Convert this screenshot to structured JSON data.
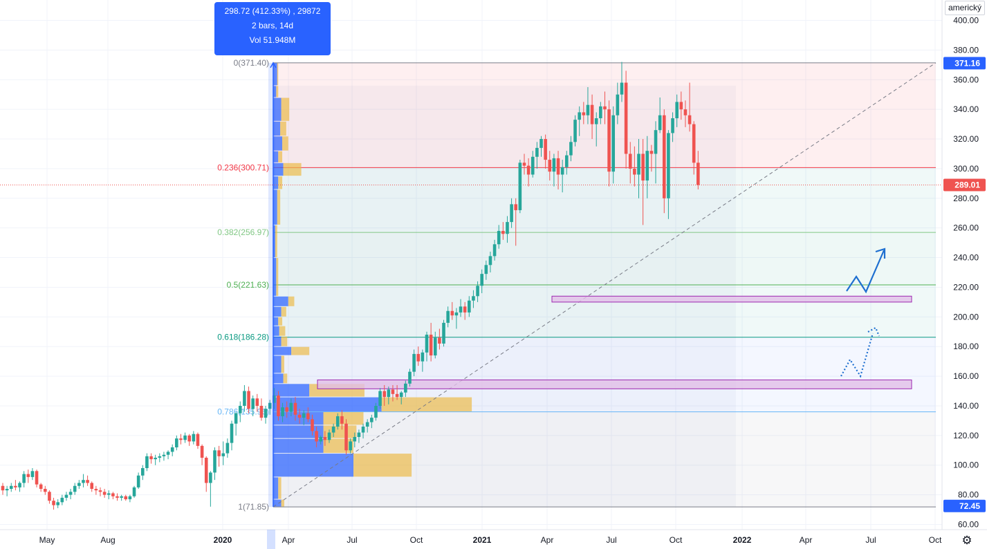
{
  "tooltip": {
    "line1": "298.72 (412.33%) , 29872",
    "line2": "2 bars, 14d",
    "line3": "Vol 51.948M"
  },
  "currency_label": "americký",
  "settings_icon": "gear-icon",
  "colors": {
    "up": "#26a69a",
    "down": "#ef5350",
    "accent": "#2962ff",
    "fib_0": "#787b86",
    "fib_0236": "#f23645",
    "fib_0382": "#81c784",
    "fib_05": "#4caf50",
    "fib_0618": "#089981",
    "fib_0786": "#64b5f6",
    "fib_1": "#787b86",
    "zone_fill": "#e1bee7",
    "zone_border": "#9c27b0",
    "arrow": "#1e6fd0"
  },
  "chart_data": {
    "type": "candlestick",
    "y_axis": {
      "min": 60,
      "max": 400,
      "ticks": [
        60,
        80,
        100,
        120,
        140,
        160,
        180,
        200,
        220,
        240,
        260,
        280,
        300,
        320,
        340,
        360,
        380,
        400
      ],
      "tick_labels": [
        "60.00",
        "80.00",
        "100.00",
        "120.00",
        "140.00",
        "160.00",
        "180.00",
        "200.00",
        "220.00",
        "240.00",
        "260.00",
        "280.00",
        "300.00",
        "320.00",
        "340.00",
        "360.00",
        "380.00",
        "400.00"
      ]
    },
    "x_axis": {
      "labels": [
        "May",
        "Aug",
        "2020",
        "Apr",
        "Jul",
        "Oct",
        "2021",
        "Apr",
        "Jul",
        "Oct",
        "2022",
        "Apr",
        "Jul",
        "Oct"
      ],
      "bold": [
        false,
        false,
        true,
        false,
        false,
        false,
        true,
        false,
        false,
        false,
        true,
        false,
        false,
        false
      ]
    },
    "price_labels": [
      {
        "value": 371.16,
        "text": "371.16",
        "style": "blue"
      },
      {
        "value": 289.01,
        "text": "289.01",
        "style": "red"
      },
      {
        "value": 72.45,
        "text": "72.45",
        "style": "blue"
      }
    ],
    "current_price": 289.01,
    "fibonacci": [
      {
        "level": "0",
        "price": 371.4,
        "label": "0(371.40)",
        "color_key": "fib_0"
      },
      {
        "level": "0.236",
        "price": 300.71,
        "label": "0.236(300.71)",
        "color_key": "fib_0236"
      },
      {
        "level": "0.382",
        "price": 256.97,
        "label": "0.382(256.97)",
        "color_key": "fib_0382"
      },
      {
        "level": "0.5",
        "price": 221.63,
        "label": "0.5(221.63)",
        "color_key": "fib_05"
      },
      {
        "level": "0.618",
        "price": 186.28,
        "label": "0.618(186.28)",
        "color_key": "fib_0618"
      },
      {
        "level": "0.786",
        "price": 135.96,
        "label": "0.786(135.96)",
        "color_key": "fib_0786"
      },
      {
        "level": "1",
        "price": 71.85,
        "label": "1(71.85)",
        "color_key": "fib_1"
      }
    ],
    "zones": [
      {
        "from": 210,
        "to": 214
      },
      {
        "from": 151.5,
        "to": 157.5
      }
    ],
    "trend_line": {
      "from_price": 71.85,
      "to_price": 371.4
    },
    "candles": [
      [
        86,
        88,
        80,
        83
      ],
      [
        83,
        86,
        79,
        84
      ],
      [
        84,
        88,
        82,
        86
      ],
      [
        86,
        90,
        83,
        85
      ],
      [
        85,
        89,
        82,
        88
      ],
      [
        88,
        96,
        85,
        94
      ],
      [
        94,
        97,
        88,
        92
      ],
      [
        92,
        98,
        90,
        96
      ],
      [
        96,
        97,
        85,
        87
      ],
      [
        87,
        88,
        82,
        84
      ],
      [
        84,
        86,
        80,
        82
      ],
      [
        82,
        83,
        74,
        76
      ],
      [
        76,
        78,
        70,
        73
      ],
      [
        73,
        77,
        71,
        75
      ],
      [
        75,
        80,
        73,
        78
      ],
      [
        78,
        82,
        76,
        80
      ],
      [
        80,
        84,
        77,
        82
      ],
      [
        82,
        88,
        80,
        86
      ],
      [
        86,
        90,
        84,
        88
      ],
      [
        88,
        94,
        85,
        90
      ],
      [
        90,
        93,
        86,
        88
      ],
      [
        88,
        89,
        82,
        84
      ],
      [
        84,
        86,
        80,
        83
      ],
      [
        83,
        85,
        79,
        82
      ],
      [
        82,
        84,
        78,
        80
      ],
      [
        80,
        83,
        77,
        81
      ],
      [
        81,
        82,
        77,
        79
      ],
      [
        79,
        81,
        76,
        78
      ],
      [
        78,
        80,
        76,
        79
      ],
      [
        79,
        80,
        76,
        77
      ],
      [
        77,
        80,
        75,
        79
      ],
      [
        79,
        86,
        78,
        85
      ],
      [
        85,
        95,
        84,
        93
      ],
      [
        93,
        100,
        90,
        98
      ],
      [
        98,
        108,
        96,
        106
      ],
      [
        106,
        108,
        101,
        104
      ],
      [
        104,
        107,
        100,
        105
      ],
      [
        105,
        108,
        102,
        106
      ],
      [
        106,
        109,
        103,
        107
      ],
      [
        107,
        110,
        104,
        109
      ],
      [
        109,
        114,
        106,
        112
      ],
      [
        112,
        120,
        110,
        118
      ],
      [
        118,
        121,
        114,
        117
      ],
      [
        117,
        122,
        115,
        120
      ],
      [
        120,
        121,
        113,
        116
      ],
      [
        116,
        123,
        114,
        121
      ],
      [
        121,
        122,
        111,
        113
      ],
      [
        113,
        114,
        100,
        105
      ],
      [
        105,
        106,
        82,
        88
      ],
      [
        88,
        96,
        72,
        95
      ],
      [
        95,
        112,
        90,
        110
      ],
      [
        110,
        113,
        99,
        106
      ],
      [
        106,
        116,
        100,
        108
      ],
      [
        108,
        118,
        105,
        115
      ],
      [
        115,
        130,
        110,
        128
      ],
      [
        128,
        136,
        120,
        135
      ],
      [
        135,
        143,
        129,
        140
      ],
      [
        140,
        154,
        136,
        150
      ],
      [
        150,
        153,
        135,
        138
      ],
      [
        138,
        147,
        133,
        145
      ],
      [
        145,
        148,
        136,
        140
      ],
      [
        140,
        145,
        130,
        132
      ],
      [
        132,
        140,
        128,
        138
      ],
      [
        138,
        144,
        134,
        142
      ],
      [
        142,
        152,
        138,
        147
      ],
      [
        147,
        150,
        130,
        133
      ],
      [
        133,
        142,
        129,
        139
      ],
      [
        139,
        143,
        132,
        136
      ],
      [
        136,
        145,
        133,
        142
      ],
      [
        142,
        146,
        130,
        134
      ],
      [
        134,
        138,
        128,
        132
      ],
      [
        132,
        137,
        127,
        135
      ],
      [
        135,
        139,
        129,
        131
      ],
      [
        131,
        134,
        120,
        123
      ],
      [
        123,
        126,
        112,
        116
      ],
      [
        116,
        120,
        114,
        119
      ],
      [
        119,
        123,
        113,
        117
      ],
      [
        117,
        124,
        115,
        122
      ],
      [
        122,
        128,
        119,
        126
      ],
      [
        126,
        135,
        124,
        133
      ],
      [
        133,
        137,
        124,
        128
      ],
      [
        128,
        131,
        107,
        110
      ],
      [
        110,
        118,
        108,
        116
      ],
      [
        116,
        122,
        112,
        119
      ],
      [
        119,
        124,
        115,
        122
      ],
      [
        122,
        128,
        118,
        126
      ],
      [
        126,
        131,
        122,
        129
      ],
      [
        129,
        134,
        125,
        132
      ],
      [
        132,
        142,
        130,
        140
      ],
      [
        140,
        152,
        138,
        150
      ],
      [
        150,
        154,
        140,
        146
      ],
      [
        146,
        153,
        141,
        151
      ],
      [
        151,
        154,
        143,
        148
      ],
      [
        148,
        154,
        144,
        146
      ],
      [
        146,
        150,
        141,
        149
      ],
      [
        149,
        157,
        146,
        155
      ],
      [
        155,
        165,
        153,
        163
      ],
      [
        163,
        178,
        160,
        175
      ],
      [
        175,
        180,
        167,
        170
      ],
      [
        170,
        178,
        163,
        176
      ],
      [
        176,
        190,
        170,
        188
      ],
      [
        188,
        196,
        170,
        174
      ],
      [
        174,
        190,
        172,
        186
      ],
      [
        186,
        192,
        178,
        182
      ],
      [
        182,
        198,
        180,
        196
      ],
      [
        196,
        207,
        193,
        204
      ],
      [
        204,
        210,
        198,
        201
      ],
      [
        201,
        206,
        192,
        203
      ],
      [
        203,
        212,
        200,
        207
      ],
      [
        207,
        210,
        198,
        203
      ],
      [
        203,
        214,
        200,
        211
      ],
      [
        211,
        218,
        206,
        214
      ],
      [
        214,
        224,
        210,
        221
      ],
      [
        221,
        232,
        216,
        229
      ],
      [
        229,
        238,
        225,
        235
      ],
      [
        235,
        244,
        230,
        241
      ],
      [
        241,
        252,
        238,
        249
      ],
      [
        249,
        262,
        246,
        258
      ],
      [
        258,
        264,
        252,
        256
      ],
      [
        256,
        268,
        250,
        264
      ],
      [
        264,
        280,
        260,
        276
      ],
      [
        276,
        280,
        248,
        272
      ],
      [
        272,
        306,
        270,
        304
      ],
      [
        304,
        310,
        296,
        302
      ],
      [
        302,
        307,
        288,
        296
      ],
      [
        296,
        312,
        294,
        308
      ],
      [
        308,
        318,
        300,
        314
      ],
      [
        314,
        322,
        308,
        320
      ],
      [
        320,
        323,
        300,
        306
      ],
      [
        306,
        312,
        292,
        298
      ],
      [
        298,
        310,
        288,
        307
      ],
      [
        307,
        312,
        286,
        296
      ],
      [
        296,
        306,
        284,
        301
      ],
      [
        301,
        312,
        296,
        309
      ],
      [
        309,
        322,
        305,
        318
      ],
      [
        318,
        336,
        315,
        333
      ],
      [
        333,
        342,
        322,
        338
      ],
      [
        338,
        345,
        330,
        336
      ],
      [
        336,
        355,
        330,
        343
      ],
      [
        343,
        350,
        320,
        330
      ],
      [
        330,
        338,
        315,
        334
      ],
      [
        334,
        345,
        330,
        342
      ],
      [
        342,
        352,
        330,
        340
      ],
      [
        340,
        346,
        288,
        298
      ],
      [
        298,
        342,
        290,
        336
      ],
      [
        336,
        358,
        330,
        350
      ],
      [
        350,
        372,
        345,
        358
      ],
      [
        358,
        366,
        300,
        310
      ],
      [
        310,
        318,
        290,
        300
      ],
      [
        300,
        315,
        288,
        296
      ],
      [
        296,
        320,
        280,
        310
      ],
      [
        310,
        320,
        262,
        292
      ],
      [
        292,
        322,
        280,
        312
      ],
      [
        312,
        316,
        298,
        310
      ],
      [
        310,
        332,
        290,
        326
      ],
      [
        326,
        348,
        324,
        336
      ],
      [
        336,
        340,
        270,
        280
      ],
      [
        280,
        326,
        266,
        324
      ],
      [
        324,
        338,
        318,
        334
      ],
      [
        334,
        350,
        328,
        345
      ],
      [
        345,
        352,
        333,
        340
      ],
      [
        340,
        346,
        328,
        336
      ],
      [
        336,
        358,
        325,
        330
      ],
      [
        330,
        332,
        296,
        304
      ],
      [
        304,
        312,
        286,
        289
      ]
    ],
    "volume_profile": [
      {
        "price_low": 71.85,
        "price_high": 77,
        "up": 8,
        "down": 3
      },
      {
        "price_low": 77,
        "price_high": 92,
        "up": 5,
        "down": 3
      },
      {
        "price_low": 92,
        "price_high": 108,
        "up": 80,
        "down": 58
      },
      {
        "price_low": 108,
        "price_high": 118,
        "up": 50,
        "down": 30
      },
      {
        "price_low": 118,
        "price_high": 127,
        "up": 50,
        "down": 33
      },
      {
        "price_low": 127,
        "price_high": 136,
        "up": 50,
        "down": 40
      },
      {
        "price_low": 136,
        "price_high": 146,
        "up": 108,
        "down": 90
      },
      {
        "price_low": 146,
        "price_high": 155,
        "up": 36,
        "down": 55
      },
      {
        "price_low": 155,
        "price_high": 162,
        "up": 10,
        "down": 4
      },
      {
        "price_low": 162,
        "price_high": 174,
        "up": 8,
        "down": 3
      },
      {
        "price_low": 174,
        "price_high": 180,
        "up": 18,
        "down": 18
      },
      {
        "price_low": 180,
        "price_high": 187,
        "up": 8,
        "down": 6
      },
      {
        "price_low": 187,
        "price_high": 194,
        "up": 6,
        "down": 6
      },
      {
        "price_low": 194,
        "price_high": 200,
        "up": 5,
        "down": 4
      },
      {
        "price_low": 200,
        "price_high": 207,
        "up": 8,
        "down": 5
      },
      {
        "price_low": 207,
        "price_high": 214,
        "up": 15,
        "down": 6
      },
      {
        "price_low": 214,
        "price_high": 240,
        "up": 3,
        "down": 2
      },
      {
        "price_low": 240,
        "price_high": 262,
        "up": 2,
        "down": 2
      },
      {
        "price_low": 262,
        "price_high": 286,
        "up": 4,
        "down": 3
      },
      {
        "price_low": 286,
        "price_high": 295,
        "up": 5,
        "down": 4
      },
      {
        "price_low": 295,
        "price_high": 304,
        "up": 10,
        "down": 18
      },
      {
        "price_low": 304,
        "price_high": 312,
        "up": 5,
        "down": 4
      },
      {
        "price_low": 312,
        "price_high": 322,
        "up": 9,
        "down": 6
      },
      {
        "price_low": 322,
        "price_high": 332,
        "up": 7,
        "down": 6
      },
      {
        "price_low": 332,
        "price_high": 348,
        "up": 8,
        "down": 8
      },
      {
        "price_low": 348,
        "price_high": 356,
        "up": 3,
        "down": 2
      },
      {
        "price_low": 356,
        "price_high": 371.4,
        "up": 4,
        "down": 1
      }
    ]
  }
}
